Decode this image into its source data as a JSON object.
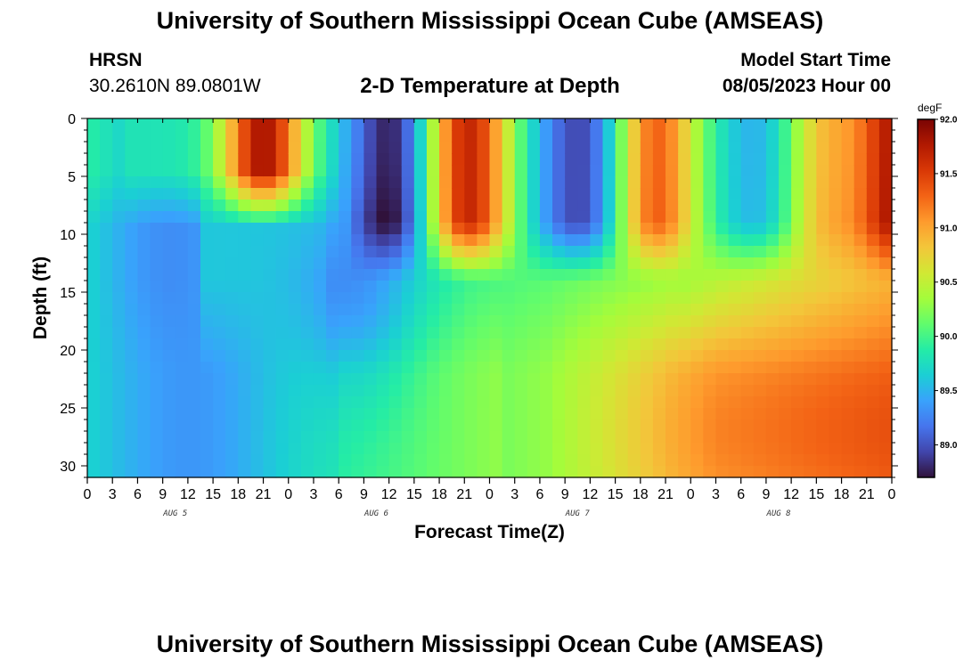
{
  "header": {
    "title": "University of Southern Mississippi Ocean Cube (AMSEAS)",
    "station": "HRSN",
    "coords": "30.2610N  89.0801W",
    "subtitle": "2-D Temperature at Depth",
    "model_start_label": "Model Start Time",
    "model_start_value": "08/05/2023 Hour 00"
  },
  "footer": {
    "title": "University of Southern Mississippi Ocean Cube (AMSEAS)"
  },
  "chart_data": {
    "type": "heatmap",
    "xlabel": "Forecast Time(Z)",
    "ylabel": "Depth (ft)",
    "x_range_hours": [
      0,
      96
    ],
    "x_tick_labels": [
      "0",
      "3",
      "6",
      "9",
      "12",
      "15",
      "18",
      "21",
      "0",
      "3",
      "6",
      "9",
      "12",
      "15",
      "18",
      "21",
      "0",
      "3",
      "6",
      "9",
      "12",
      "15",
      "18",
      "21",
      "0",
      "3",
      "6",
      "9",
      "12",
      "15",
      "18",
      "21",
      "0"
    ],
    "day_labels": [
      "AUG 5",
      "AUG 6",
      "AUG 7",
      "AUG 8"
    ],
    "y_range": [
      0,
      31
    ],
    "y_ticks": [
      0,
      5,
      10,
      15,
      20,
      25,
      30
    ],
    "y_inverted": true,
    "colorbar": {
      "unit": "degF",
      "min": 88.7,
      "max": 92.0,
      "ticks": [
        "92.0",
        "91.5",
        "91.0",
        "90.5",
        "90.0",
        "89.5",
        "89.0"
      ],
      "colors": [
        "#30123b",
        "#4145ab",
        "#4675ed",
        "#39a2fc",
        "#1bcfd4",
        "#24eca6",
        "#61fc6c",
        "#a4fc3b",
        "#d1e834",
        "#f3c63a",
        "#fe9b2d",
        "#f36315",
        "#d93806",
        "#b11901",
        "#7a0403"
      ]
    },
    "grid_cols_hours": 1.5,
    "grid_rows_ft": 1,
    "field_description": {
      "columns_by_hour": [
        {
          "hour": 0,
          "temp": 90.0
        },
        {
          "hour": 6,
          "temp": 89.3
        },
        {
          "hour": 15,
          "temp": 89.4
        },
        {
          "hour": 19,
          "temp": 91.7,
          "surface_only_depth_ft": 5
        }
      ]
    }
  }
}
